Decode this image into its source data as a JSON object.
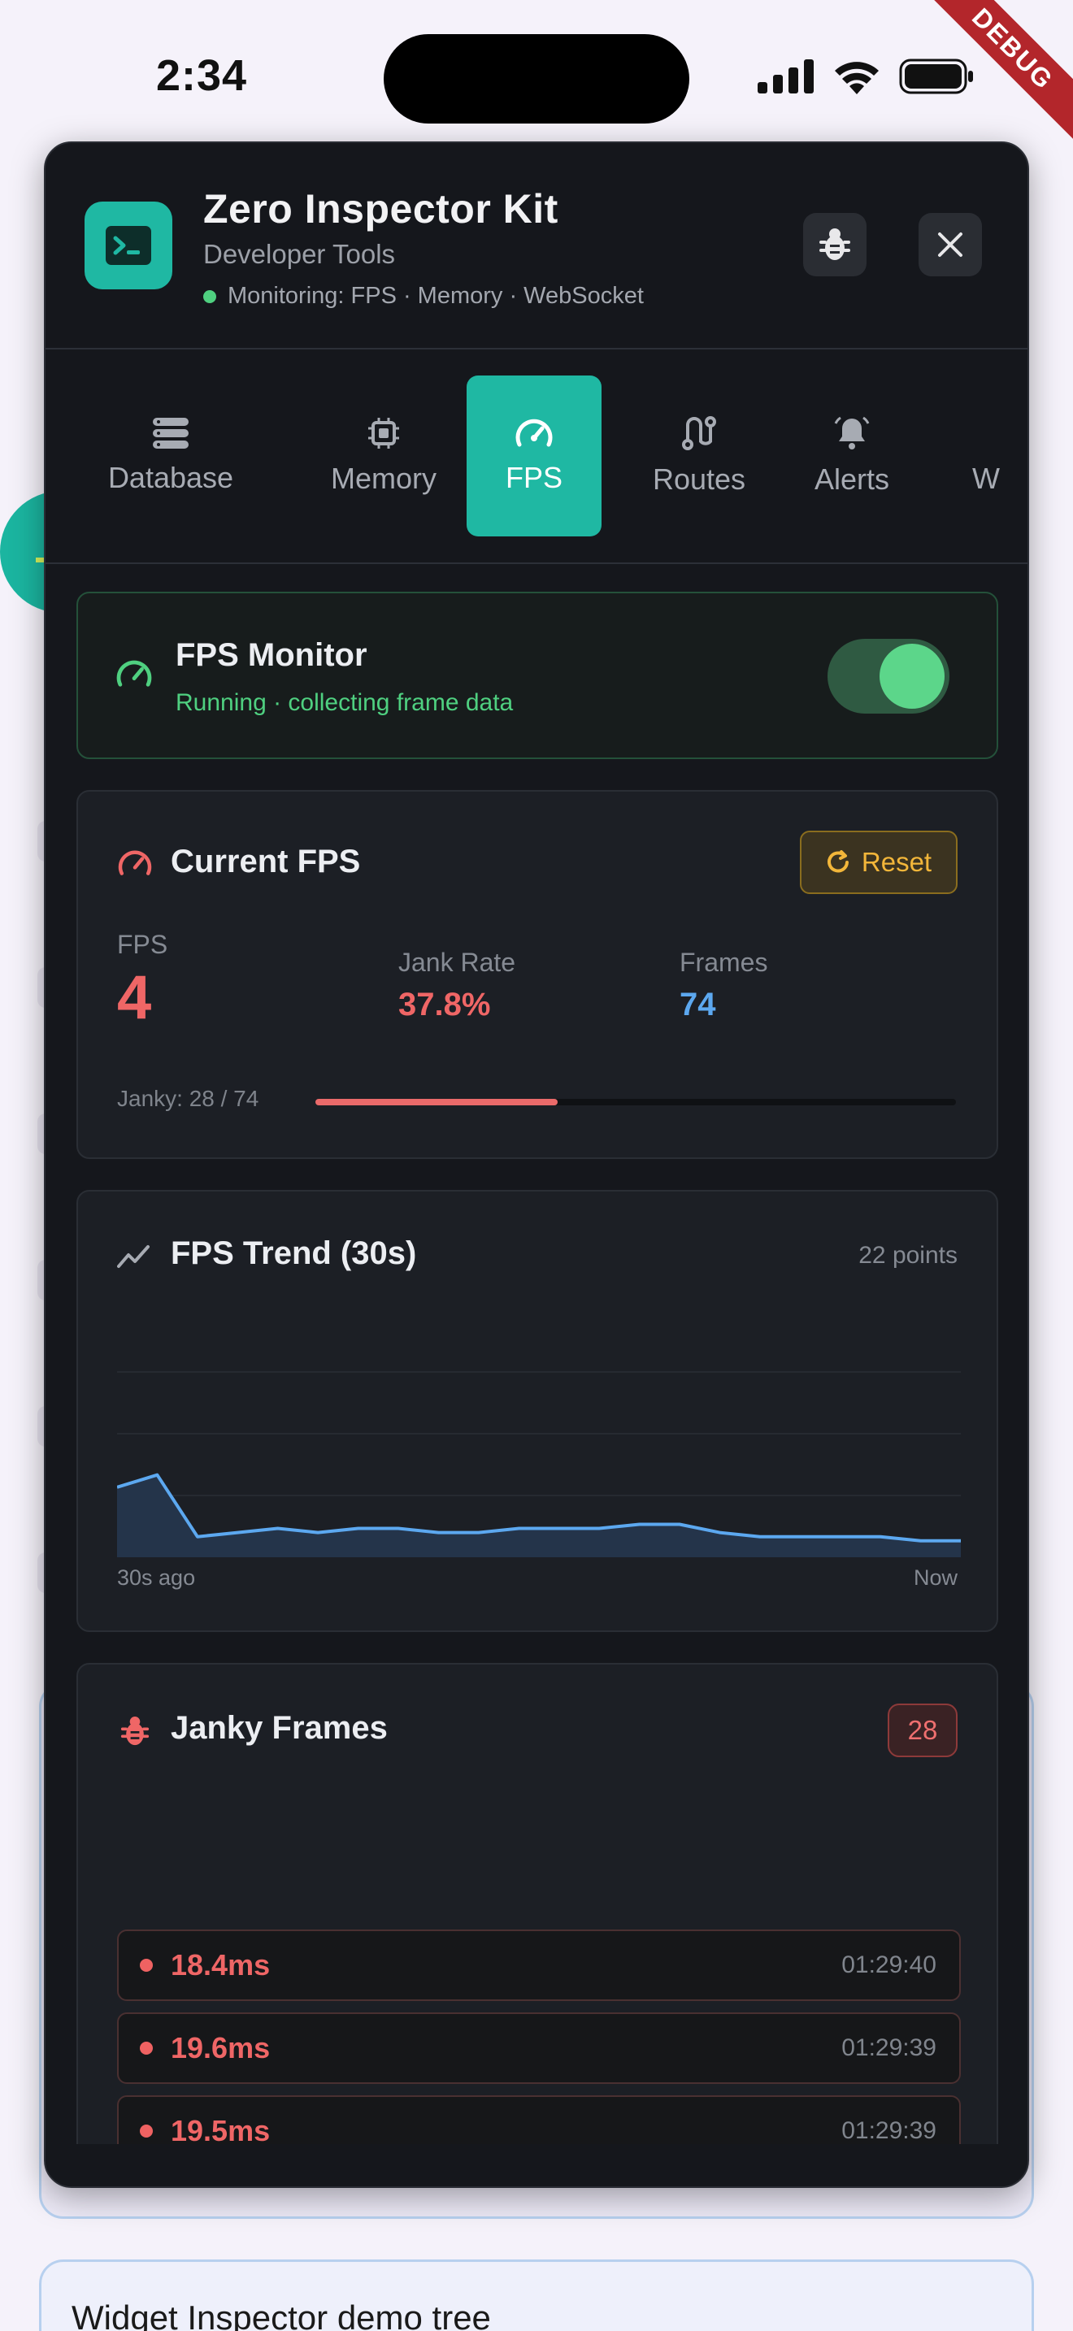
{
  "status_bar": {
    "time": "2:34",
    "debug_label": "DEBUG"
  },
  "header": {
    "title": "Zero Inspector Kit",
    "subtitle": "Developer Tools",
    "monitoring": "Monitoring: FPS · Memory · WebSocket"
  },
  "tabs": [
    {
      "label": "Database",
      "icon": "database-icon"
    },
    {
      "label": "Memory",
      "icon": "chip-icon"
    },
    {
      "label": "FPS",
      "icon": "speedometer-icon",
      "active": true
    },
    {
      "label": "Routes",
      "icon": "route-icon"
    },
    {
      "label": "Alerts",
      "icon": "bell-icon"
    },
    {
      "label": "W",
      "icon": ""
    }
  ],
  "fps_monitor": {
    "title": "FPS Monitor",
    "status": "Running · collecting frame data",
    "enabled": true
  },
  "current_fps": {
    "title": "Current FPS",
    "reset_label": "Reset",
    "fps_label": "FPS",
    "fps_value": "4",
    "jank_label": "Jank Rate",
    "jank_value": "37.8%",
    "frames_label": "Frames",
    "frames_value": "74",
    "janky_text": "Janky: 28 / 74",
    "janky_fraction": 0.378
  },
  "trend": {
    "title": "FPS Trend (30s)",
    "points_label": "22 points",
    "start_label": "30s ago",
    "end_label": "Now"
  },
  "chart_data": {
    "type": "area",
    "title": "FPS Trend (30s)",
    "x": [
      1,
      2,
      3,
      4,
      5,
      6,
      7,
      8,
      9,
      10,
      11,
      12,
      13,
      14,
      15,
      16,
      17,
      18,
      19,
      20,
      21,
      22
    ],
    "values": [
      17,
      20,
      5,
      6,
      7,
      6,
      7,
      7,
      6,
      6,
      7,
      7,
      7,
      8,
      8,
      6,
      5,
      5,
      5,
      5,
      4,
      4
    ],
    "ylim": [
      0,
      60
    ],
    "grid": true,
    "colors": {
      "line": "#5ca8f0",
      "fill": "#24344a"
    }
  },
  "janky_frames": {
    "title": "Janky Frames",
    "count": "28",
    "rows": [
      {
        "ms": "18.4ms",
        "time": "01:29:40"
      },
      {
        "ms": "19.6ms",
        "time": "01:29:39"
      },
      {
        "ms": "19.5ms",
        "time": "01:29:39"
      }
    ]
  },
  "background": {
    "tree_title": "Widget Inspector demo tree"
  },
  "colors": {
    "accent": "#1fb8a3",
    "danger": "#ef6666",
    "info": "#5ca8f0",
    "success": "#5cd68a",
    "warning": "#f2b63a"
  }
}
